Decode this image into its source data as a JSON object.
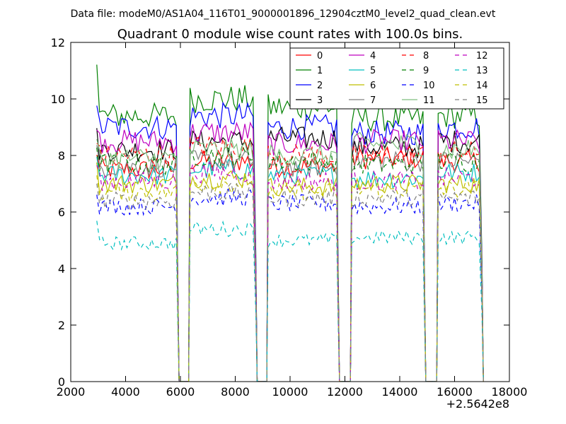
{
  "figure": {
    "suptitle": "Data file: modeM0/AS1A04_116T01_9000001896_12904cztM0_level2_quad_clean.evt",
    "offset_label": "+2.5642e8"
  },
  "chart_data": {
    "type": "line",
    "title": "Quadrant 0 module wise count rates with 100.0s bins.",
    "xlabel": "",
    "ylabel": "",
    "xlim": [
      2000,
      18000
    ],
    "ylim": [
      0,
      12
    ],
    "x_offset": 256420000,
    "xticks": [
      2000,
      4000,
      6000,
      8000,
      10000,
      12000,
      14000,
      16000,
      18000
    ],
    "xtick_labels": [
      "2000",
      "4000",
      "6000",
      "8000",
      "10000",
      "12000",
      "14000",
      "16000",
      "18000"
    ],
    "yticks": [
      0,
      2,
      4,
      6,
      8,
      10,
      12
    ],
    "ytick_labels": [
      "0",
      "2",
      "4",
      "6",
      "8",
      "10",
      "12"
    ],
    "grid": false,
    "legend_position": "top-right",
    "legend_columns": 4,
    "segments": [
      [
        2950,
        5950
      ],
      [
        6350,
        8800
      ],
      [
        9200,
        11800
      ],
      [
        12250,
        14950
      ],
      [
        15400,
        17050
      ]
    ],
    "gaps": [
      [
        5950,
        6350
      ],
      [
        8800,
        9200
      ],
      [
        11800,
        12250
      ],
      [
        14950,
        15400
      ]
    ],
    "bin_width": 100,
    "series": [
      {
        "name": "0",
        "color": "#ff0000",
        "dashed": false,
        "levels": [
          7.5,
          7.8,
          7.6,
          7.9,
          7.8
        ]
      },
      {
        "name": "1",
        "color": "#008000",
        "dashed": false,
        "levels": [
          9.4,
          10.0,
          9.7,
          9.3,
          9.4
        ]
      },
      {
        "name": "2",
        "color": "#0000ff",
        "dashed": false,
        "levels": [
          9.0,
          9.4,
          9.0,
          8.8,
          9.0
        ]
      },
      {
        "name": "3",
        "color": "#000000",
        "dashed": false,
        "levels": [
          8.2,
          8.5,
          8.6,
          8.3,
          8.5
        ]
      },
      {
        "name": "4",
        "color": "#bf00bf",
        "dashed": false,
        "levels": [
          8.5,
          8.8,
          8.4,
          8.5,
          8.5
        ]
      },
      {
        "name": "5",
        "color": "#00bfbf",
        "dashed": false,
        "levels": [
          7.3,
          7.5,
          7.3,
          7.2,
          7.4
        ]
      },
      {
        "name": "6",
        "color": "#bfbf00",
        "dashed": false,
        "levels": [
          7.0,
          7.2,
          6.9,
          7.0,
          7.0
        ]
      },
      {
        "name": "7",
        "color": "#808080",
        "dashed": false,
        "levels": [
          7.6,
          7.8,
          7.6,
          7.8,
          7.8
        ]
      },
      {
        "name": "8",
        "color": "#ff0000",
        "dashed": true,
        "levels": [
          8.0,
          8.3,
          8.0,
          8.0,
          8.1
        ]
      },
      {
        "name": "9",
        "color": "#008000",
        "dashed": true,
        "levels": [
          7.7,
          8.0,
          7.8,
          7.7,
          7.8
        ]
      },
      {
        "name": "10",
        "color": "#0000ff",
        "dashed": true,
        "levels": [
          6.2,
          6.5,
          6.3,
          6.2,
          6.3
        ]
      },
      {
        "name": "11",
        "color": "#7fbf7f",
        "dashed": false,
        "levels": [
          7.9,
          8.2,
          8.0,
          8.4,
          8.2
        ]
      },
      {
        "name": "12",
        "color": "#bf00bf",
        "dashed": true,
        "levels": [
          7.1,
          7.4,
          7.1,
          7.1,
          7.2
        ]
      },
      {
        "name": "13",
        "color": "#00bfbf",
        "dashed": true,
        "levels": [
          4.9,
          5.4,
          5.0,
          5.1,
          5.1
        ]
      },
      {
        "name": "14",
        "color": "#bfbf00",
        "dashed": true,
        "levels": [
          6.7,
          7.0,
          6.7,
          6.8,
          6.8
        ]
      },
      {
        "name": "15",
        "color": "#808080",
        "dashed": true,
        "levels": [
          6.4,
          6.7,
          6.5,
          6.5,
          6.5
        ]
      }
    ]
  }
}
